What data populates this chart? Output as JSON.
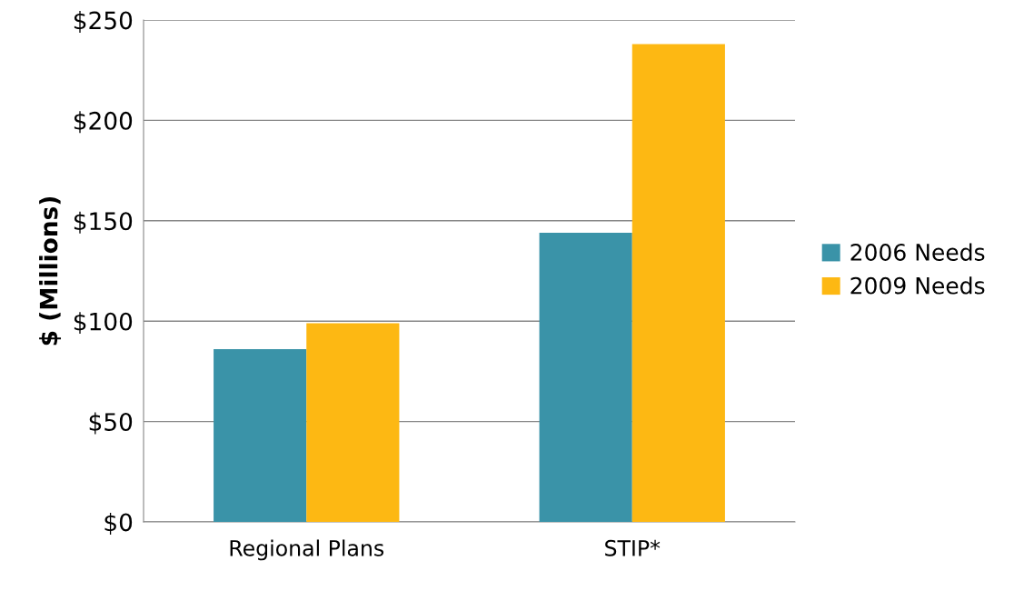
{
  "chart_data": {
    "type": "bar",
    "ylabel": "$ (Millions)",
    "categories": [
      "Regional Plans",
      "STIP*"
    ],
    "series": [
      {
        "name": "2006 Needs",
        "color": "#3a93a8",
        "values": [
          86,
          144
        ]
      },
      {
        "name": "2009 Needs",
        "color": "#fdb813",
        "values": [
          99,
          238
        ]
      }
    ],
    "ylim": [
      0,
      250
    ],
    "yticks": [
      {
        "value": 0,
        "label": "$0"
      },
      {
        "value": 50,
        "label": "$50"
      },
      {
        "value": 100,
        "label": "$100"
      },
      {
        "value": 150,
        "label": "$150"
      },
      {
        "value": 200,
        "label": "$200"
      },
      {
        "value": 250,
        "label": "$250"
      }
    ],
    "grid": "y",
    "legend": "right"
  }
}
